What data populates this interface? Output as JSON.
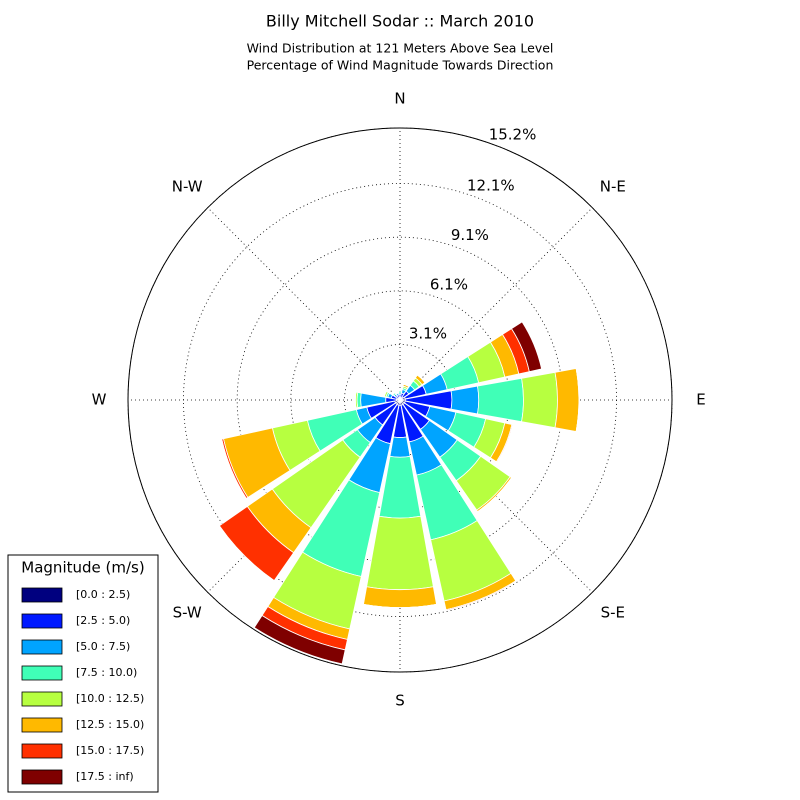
{
  "chart_data": {
    "type": "windrose",
    "title": "Billy Mitchell Sodar :: March 2010",
    "subtitle": [
      "Wind Distribution at 121 Meters Above Sea Level",
      "Percentage of Wind Magnitude Towards Direction"
    ],
    "legend_title": "Magnitude (m/s)",
    "legend": "lower left",
    "grid": true,
    "rlim": [
      0,
      15.2
    ],
    "rticks": [
      {
        "value": 3.1,
        "label": "3.1%"
      },
      {
        "value": 6.1,
        "label": "6.1%"
      },
      {
        "value": 9.1,
        "label": "9.1%"
      },
      {
        "value": 12.1,
        "label": "12.1%"
      },
      {
        "value": 15.2,
        "label": "15.2%"
      }
    ],
    "xticks": [
      {
        "value": 0,
        "label": "N"
      },
      {
        "value": 45,
        "label": "N-E"
      },
      {
        "value": 90,
        "label": "E"
      },
      {
        "value": 135,
        "label": "S-E"
      },
      {
        "value": 180,
        "label": "S"
      },
      {
        "value": 225,
        "label": "S-W"
      },
      {
        "value": 270,
        "label": "W"
      },
      {
        "value": 315,
        "label": "N-W"
      }
    ],
    "series": [
      {
        "name": "[0.0 : 2.5)",
        "color": "#00007f",
        "values": [
          0.1,
          0.1,
          0.2,
          0.3,
          0.3,
          0.3,
          0.3,
          0.3,
          0.3,
          0.3,
          0.3,
          0.3,
          0.2,
          0.2,
          0.1,
          0.1
        ]
      },
      {
        "name": "[2.5 : 5.0)",
        "color": "#0019ff",
        "values": [
          0.2,
          0.3,
          0.4,
          1.2,
          2.6,
          1.4,
          1.7,
          2.1,
          1.8,
          2.2,
          1.4,
          1.6,
          0.6,
          0.3,
          0.2,
          0.2
        ]
      },
      {
        "name": "[5.0 : 7.5)",
        "color": "#00a4ff",
        "values": [
          0.1,
          0.2,
          0.4,
          1.2,
          1.5,
          1.5,
          1.9,
          1.9,
          1.1,
          2.8,
          1.2,
          0.6,
          1.4,
          0.2,
          0.1,
          0.1
        ]
      },
      {
        "name": "[7.5 : 10.0)",
        "color": "#40ffb7",
        "values": [
          0.1,
          0.1,
          0.3,
          1.8,
          2.5,
          1.7,
          1.6,
          3.7,
          3.4,
          4.8,
          1.0,
          2.8,
          0.2,
          0.1,
          0.1,
          0
        ]
      },
      {
        "name": "[10.0 : 12.5)",
        "color": "#b7ff40",
        "values": [
          0,
          0.1,
          0.2,
          1.5,
          1.9,
          1.1,
          2.0,
          3.5,
          4.0,
          3.0,
          4.8,
          2.0,
          0.1,
          0.1,
          0,
          0
        ]
      },
      {
        "name": "[12.5 : 15.0)",
        "color": "#ffb900",
        "values": [
          0,
          0.1,
          0.2,
          0.8,
          1.2,
          0.4,
          0.1,
          0.5,
          1.0,
          0.6,
          1.7,
          2.8,
          0,
          0,
          0,
          0
        ]
      },
      {
        "name": "[15.0 : 17.5)",
        "color": "#ff3000",
        "values": [
          0,
          0,
          0,
          0.6,
          0,
          0.05,
          0,
          0.05,
          0,
          0.6,
          1.9,
          0.1,
          0,
          0,
          0,
          0
        ]
      },
      {
        "name": "[17.5 : inf)",
        "color": "#7f0000",
        "values": [
          0,
          0,
          0,
          0.7,
          0,
          0,
          0,
          0,
          0,
          0.8,
          0,
          0,
          0,
          0,
          0,
          0
        ]
      }
    ]
  }
}
